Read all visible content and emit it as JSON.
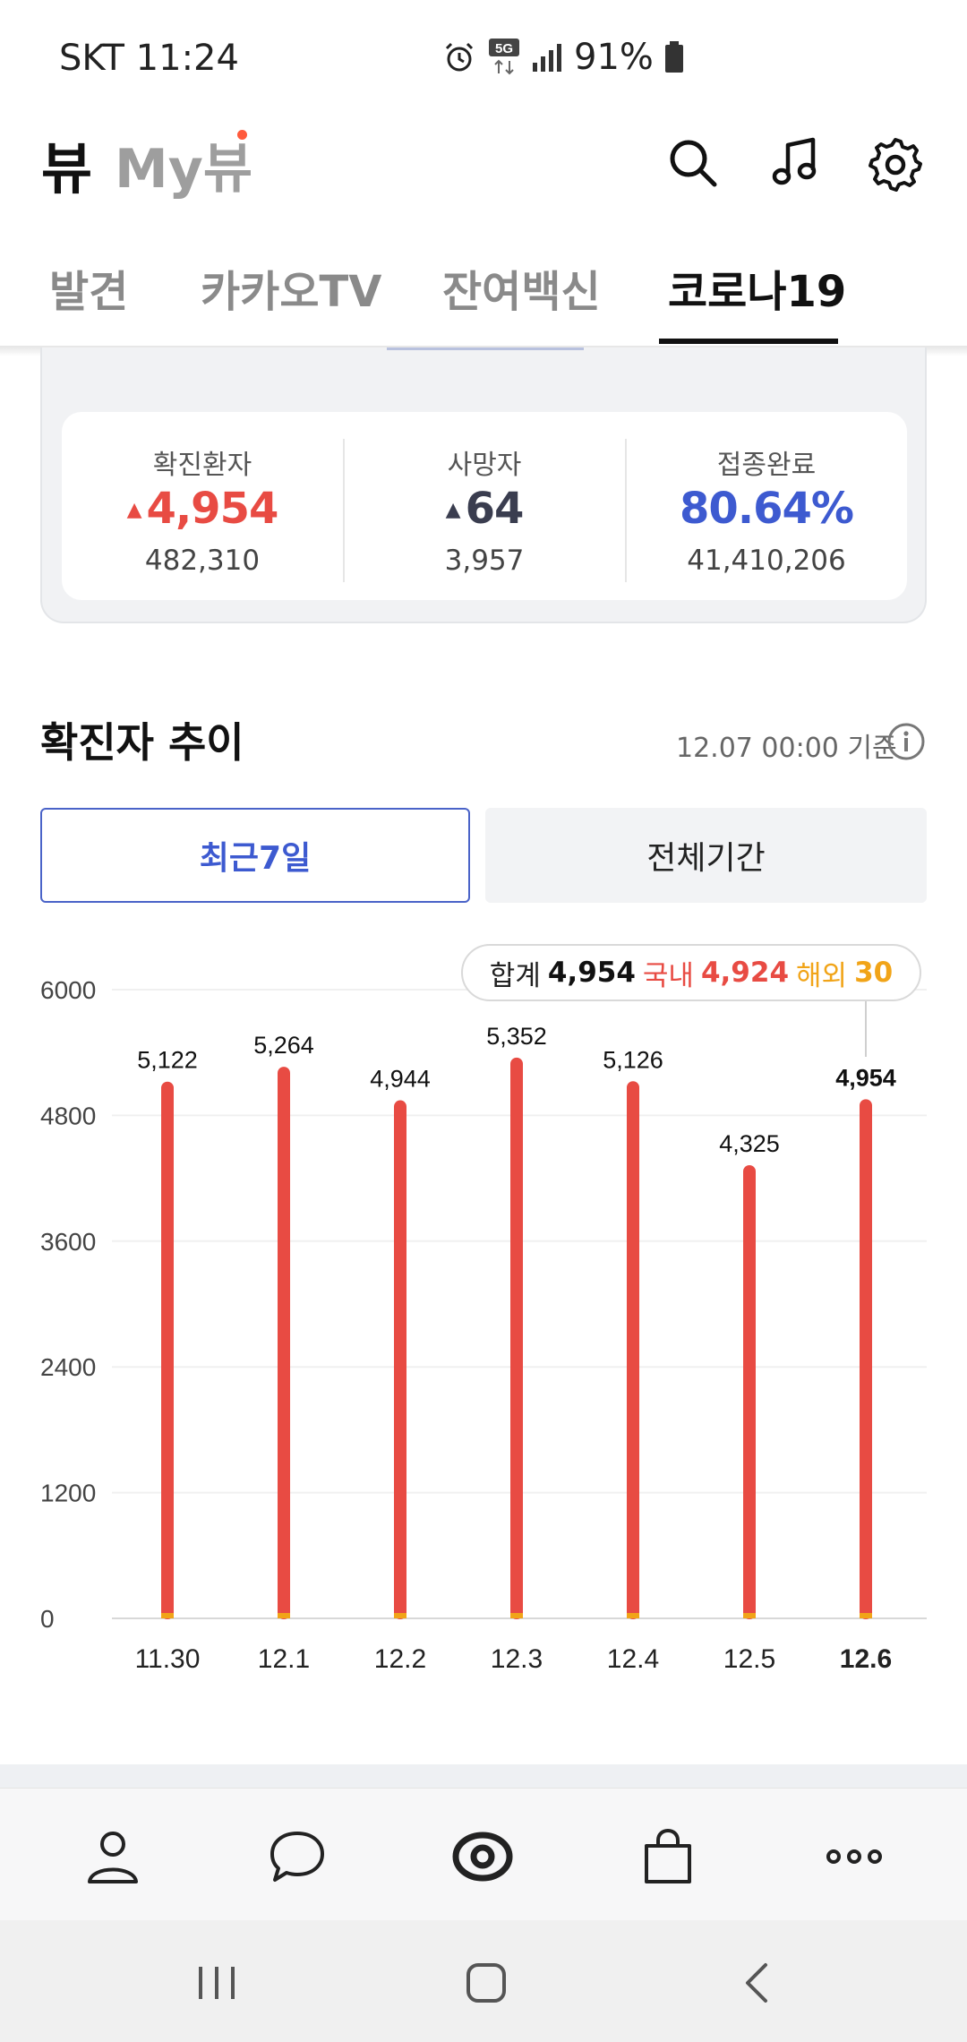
{
  "status_bar": {
    "carrier_time": "SKT 11:24",
    "network": "5G",
    "battery": "91%"
  },
  "header": {
    "logo": "뷰",
    "my_view": "My뷰"
  },
  "tabs": [
    {
      "label": "발견"
    },
    {
      "label": "카카오TV"
    },
    {
      "label": "잔여백신"
    },
    {
      "label": "코로나19",
      "active": true
    }
  ],
  "stats": {
    "confirmed": {
      "label": "확진환자",
      "change": "4,954",
      "total": "482,310",
      "color": "#e84b43"
    },
    "deaths": {
      "label": "사망자",
      "change": "64",
      "total": "3,957",
      "color": "#3a3d4f"
    },
    "vaccinated": {
      "label": "접종완료",
      "rate": "80.64%",
      "total": "41,410,206",
      "color": "#3d5ad0"
    }
  },
  "trend": {
    "title": "확진자 추이",
    "timestamp": "12.07 00:00 기준",
    "btn_recent": "최근7일",
    "btn_all": "전체기간"
  },
  "tooltip": {
    "total_label": "합계",
    "total": "4,954",
    "domestic_label": "국내",
    "domestic": "4,924",
    "overseas_label": "해외",
    "overseas": "30"
  },
  "colors": {
    "bar_domestic": "#e84b43",
    "bar_overseas": "#f1a418",
    "accent": "#3d5ad0"
  },
  "chart_data": {
    "type": "bar",
    "categories": [
      "11.30",
      "12.1",
      "12.2",
      "12.3",
      "12.4",
      "12.5",
      "12.6"
    ],
    "values": [
      5122,
      5264,
      4944,
      5352,
      5126,
      4325,
      4954
    ],
    "value_labels": [
      "5,122",
      "5,264",
      "4,944",
      "5,352",
      "5,126",
      "4,325",
      "4,954"
    ],
    "yticks": [
      "0",
      "1200",
      "2400",
      "3600",
      "4800",
      "6000"
    ],
    "ylim": [
      0,
      6000
    ],
    "highlight_index": 6,
    "grid": true
  }
}
